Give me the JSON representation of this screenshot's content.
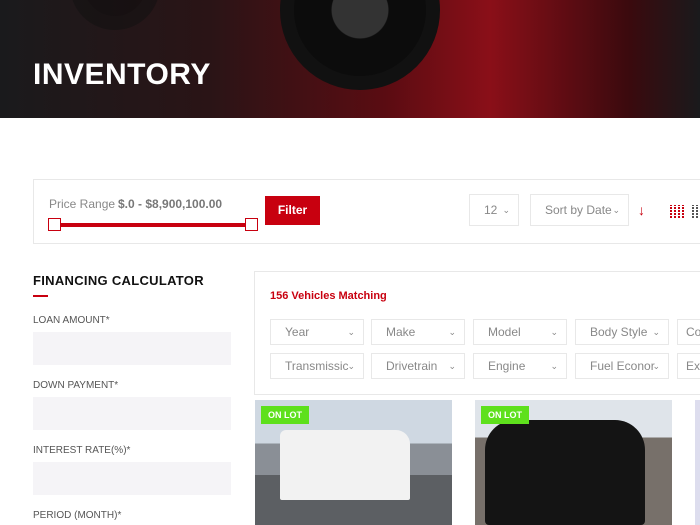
{
  "header": {
    "title": "INVENTORY"
  },
  "filter": {
    "price_label": "Price Range",
    "price_value": "$.0 - $8,900,100.00",
    "filter_button": "Filter",
    "per_page": "12",
    "sort": "Sort by Date",
    "accent": "#c8000f"
  },
  "calculator": {
    "title": "FINANCING CALCULATOR",
    "fields": [
      {
        "label": "LOAN AMOUNT*",
        "value": ""
      },
      {
        "label": "DOWN PAYMENT*",
        "value": ""
      },
      {
        "label": "INTEREST RATE(%)*",
        "value": ""
      },
      {
        "label": "PERIOD (MONTH)*",
        "value": ""
      }
    ]
  },
  "results": {
    "count": "156 Vehicles Matching",
    "filters_row1": [
      "Year",
      "Make",
      "Model",
      "Body Style",
      "Co"
    ],
    "filters_row2": [
      "Transmissic",
      "Drivetrain",
      "Engine",
      "Fuel Econor",
      "Ex"
    ]
  },
  "vehicles": [
    {
      "badge": "ON LOT"
    },
    {
      "badge": "ON LOT"
    }
  ]
}
